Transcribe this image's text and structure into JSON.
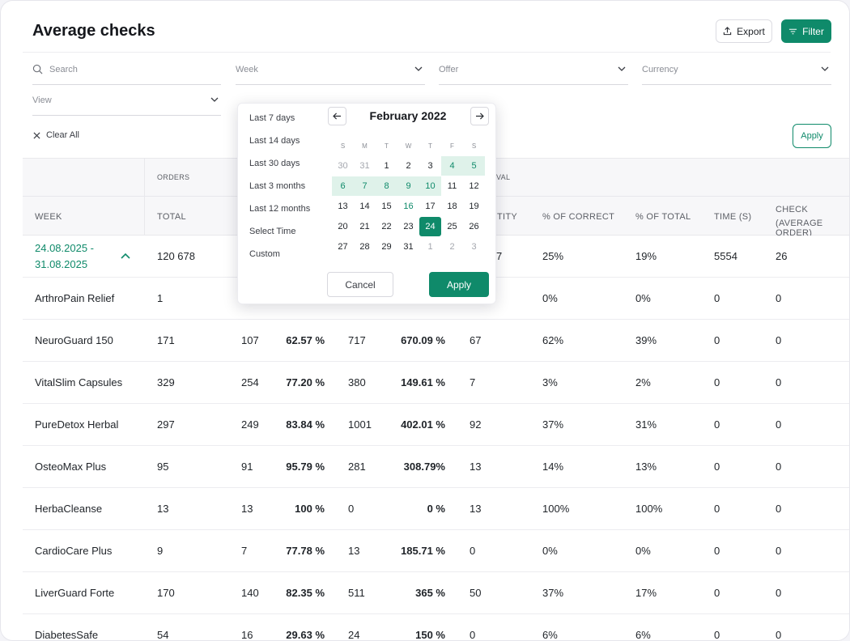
{
  "page": {
    "title": "Average checks"
  },
  "toolbar": {
    "export_label": "Export",
    "filter_label": "Filter",
    "apply_label": "Apply",
    "clear_all_label": "Clear All"
  },
  "filters": {
    "search_placeholder": "Search",
    "week_label": "Week",
    "offer_label": "Offer",
    "currency_label": "Currency",
    "view_label": "View"
  },
  "table": {
    "group_headers": {
      "orders": "ORDERS",
      "approval_partial": "VAL"
    },
    "headers": {
      "week": "WEEK",
      "total": "TOTAL",
      "quantity_partial": "TITY",
      "pct_correct": "% OF CORRECT",
      "pct_total": "% OF TOTAL",
      "time": "TIME (S)",
      "check_line1": "CHECK",
      "check_line2": "(AVERAGE ORDER)"
    },
    "week_row": {
      "week_line1": "24.08.2025 -",
      "week_line2": "31.08.2025",
      "total": "120 678",
      "quantity": "7",
      "pct_correct": "25%",
      "pct_total": "19%",
      "time": "5554",
      "check": "26"
    },
    "rows": [
      {
        "name": "ArthroPain Relief",
        "total": "1",
        "c2": "",
        "c3": "",
        "c4": "",
        "c5": "",
        "qty": "",
        "pct_correct": "0%",
        "pct_total": "0%",
        "time": "0",
        "check": "0"
      },
      {
        "name": "NeuroGuard 150",
        "total": "171",
        "c2": "107",
        "c3": "62.57 %",
        "c4": "717",
        "c5": "670.09 %",
        "qty": "67",
        "pct_correct": "62%",
        "pct_total": "39%",
        "time": "0",
        "check": "0"
      },
      {
        "name": "VitalSlim Capsules",
        "total": "329",
        "c2": "254",
        "c3": "77.20 %",
        "c4": "380",
        "c5": "149.61 %",
        "qty": "7",
        "pct_correct": "3%",
        "pct_total": "2%",
        "time": "0",
        "check": "0"
      },
      {
        "name": "PureDetox Herbal",
        "total": "297",
        "c2": "249",
        "c3": "83.84 %",
        "c4": "1001",
        "c5": "402.01 %",
        "qty": "92",
        "pct_correct": "37%",
        "pct_total": "31%",
        "time": "0",
        "check": "0"
      },
      {
        "name": "OsteoMax Plus",
        "total": "95",
        "c2": "91",
        "c3": "95.79 %",
        "c4": "281",
        "c5": "308.79%",
        "qty": "13",
        "pct_correct": "14%",
        "pct_total": "13%",
        "time": "0",
        "check": "0"
      },
      {
        "name": "HerbaCleanse",
        "total": "13",
        "c2": "13",
        "c3": "100 %",
        "c4": "0",
        "c5": "0 %",
        "qty": "13",
        "pct_correct": "100%",
        "pct_total": "100%",
        "time": "0",
        "check": "0"
      },
      {
        "name": "CardioCare Plus",
        "total": "9",
        "c2": "7",
        "c3": "77.78 %",
        "c4": "13",
        "c5": "185.71 %",
        "qty": "0",
        "pct_correct": "0%",
        "pct_total": "0%",
        "time": "0",
        "check": "0"
      },
      {
        "name": "LiverGuard Forte",
        "total": "170",
        "c2": "140",
        "c3": "82.35 %",
        "c4": "511",
        "c5": "365 %",
        "qty": "50",
        "pct_correct": "37%",
        "pct_total": "17%",
        "time": "0",
        "check": "0"
      },
      {
        "name": "DiabetesSafe",
        "total": "54",
        "c2": "16",
        "c3": "29.63 %",
        "c4": "24",
        "c5": "150 %",
        "qty": "0",
        "pct_correct": "6%",
        "pct_total": "6%",
        "time": "0",
        "check": "0"
      }
    ]
  },
  "datepicker": {
    "presets": [
      "Last 7 days",
      "Last 14 days",
      "Last 30 days",
      "Last 3 months",
      "Last 12 months",
      "Select Time",
      "Custom"
    ],
    "month_title": "February 2022",
    "weekdays": [
      "S",
      "M",
      "T",
      "W",
      "T",
      "F",
      "S"
    ],
    "weeks": [
      [
        "30",
        "31",
        "1",
        "2",
        "3",
        "4",
        "5"
      ],
      [
        "6",
        "7",
        "8",
        "9",
        "10",
        "11",
        "12"
      ],
      [
        "13",
        "14",
        "15",
        "16",
        "17",
        "18",
        "19"
      ],
      [
        "20",
        "21",
        "22",
        "23",
        "24",
        "25",
        "26"
      ],
      [
        "27",
        "28",
        "29",
        "31",
        "1",
        "2",
        "3"
      ]
    ],
    "muted": [
      [
        0,
        0
      ],
      [
        0,
        1
      ],
      [
        4,
        4
      ],
      [
        4,
        5
      ],
      [
        4,
        6
      ]
    ],
    "range": [
      [
        0,
        5
      ],
      [
        0,
        6
      ],
      [
        1,
        0
      ],
      [
        1,
        1
      ],
      [
        1,
        2
      ],
      [
        1,
        3
      ],
      [
        1,
        4
      ]
    ],
    "today": [
      2,
      3
    ],
    "selected": [
      3,
      4
    ],
    "cancel_label": "Cancel",
    "apply_label": "Apply"
  },
  "colors": {
    "accent": "#0f8a6a",
    "range": "#dff2ea"
  }
}
